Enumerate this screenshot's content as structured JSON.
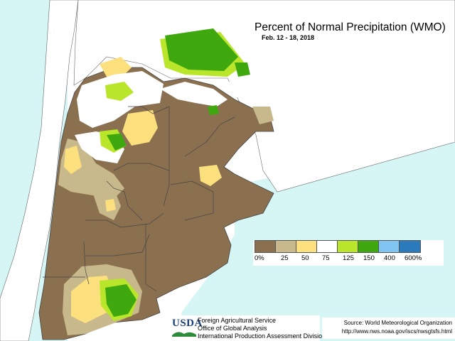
{
  "title": "Percent of Normal Precipitation (WMO)",
  "date_range": "Feb. 12 - 18, 2018",
  "legend": {
    "items": [
      {
        "label": "0%",
        "color": "#8b7050"
      },
      {
        "label": "25",
        "color": "#c8b98c"
      },
      {
        "label": "50",
        "color": "#fde07e"
      },
      {
        "label": "75",
        "color": "#ffffff"
      },
      {
        "label": "125",
        "color": "#b9e52b"
      },
      {
        "label": "150",
        "color": "#3fa80f"
      },
      {
        "label": "400",
        "color": "#80c4f2"
      },
      {
        "label": "600%",
        "color": "#2b7bbc"
      }
    ]
  },
  "credits": {
    "logo": "USDA",
    "line1": "Foreign Agricultural Service",
    "line2": "Office of Global Analysis",
    "line3": "International Production Assessment Division"
  },
  "source": {
    "line1": "Source: World Meteorological Organization",
    "line2": "http://www.nws.noaa.gov/iscs/nwsgtsfs.html"
  },
  "colors": {
    "ocean": "#d6f5f5",
    "land_outside": "#ffffff",
    "border": "#444444"
  }
}
